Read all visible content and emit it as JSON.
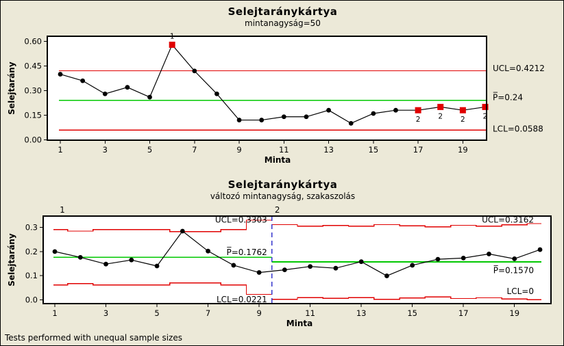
{
  "colors": {
    "window_bg": "#ECE9D8",
    "plot_bg": "#FFFFFF",
    "control_limit": "#E00000",
    "center_line": "#00C800",
    "data_line": "#000000",
    "flag_marker": "#E00000",
    "stage_separator": "#3333CC",
    "frame": "#000000"
  },
  "footer": {
    "text": "Tests performed with unequal sample sizes"
  },
  "chart_data": [
    {
      "type": "line",
      "chart_kind": "p-control-chart",
      "title": "Selejtaránykártya",
      "subtitle": "mintanagyság=50",
      "xlabel": "Minta",
      "ylabel": "Selejtarány",
      "x": [
        1,
        2,
        3,
        4,
        5,
        6,
        7,
        8,
        9,
        10,
        11,
        12,
        13,
        14,
        15,
        16,
        17,
        18,
        19,
        20
      ],
      "values": [
        0.4,
        0.36,
        0.28,
        0.32,
        0.26,
        0.58,
        0.42,
        0.28,
        0.12,
        0.12,
        0.14,
        0.14,
        0.18,
        0.1,
        0.16,
        0.18,
        0.18,
        0.2,
        0.18,
        0.2
      ],
      "ucl": 0.4212,
      "center": 0.24,
      "lcl": 0.0588,
      "labels": {
        "ucl": "UCL=0.4212",
        "center": "P̅=0.24",
        "lcl": "LCL=0.0588"
      },
      "flagged_points": [
        {
          "sample": 6,
          "label": "1",
          "label_position": "above"
        },
        {
          "sample": 17,
          "label": "2",
          "label_position": "below"
        },
        {
          "sample": 18,
          "label": "2",
          "label_position": "below"
        },
        {
          "sample": 19,
          "label": "2",
          "label_position": "below"
        },
        {
          "sample": 20,
          "label": "2",
          "label_position": "below"
        }
      ],
      "ytick_values": [
        0.0,
        0.15,
        0.3,
        0.45,
        0.6
      ],
      "ytick_labels": [
        "0.00",
        "0.15",
        "0.30",
        "0.45",
        "0.60"
      ],
      "xticks": [
        1,
        3,
        5,
        7,
        9,
        11,
        13,
        15,
        17,
        19
      ],
      "ylim": [
        -0.003,
        0.632
      ],
      "grid": false,
      "legend": null
    },
    {
      "type": "line",
      "chart_kind": "p-control-chart-staged",
      "title": "Selejtaránykártya",
      "subtitle": "változó mintanagyság, szakaszolás",
      "xlabel": "Minta",
      "ylabel": "Selejtarány",
      "x": [
        1,
        2,
        3,
        4,
        5,
        6,
        7,
        8,
        9,
        10,
        11,
        12,
        13,
        14,
        15,
        16,
        17,
        18,
        19,
        20
      ],
      "values": [
        0.2,
        0.176,
        0.148,
        0.165,
        0.14,
        0.285,
        0.202,
        0.143,
        0.113,
        0.124,
        0.138,
        0.131,
        0.158,
        0.099,
        0.143,
        0.168,
        0.173,
        0.19,
        0.17,
        0.208
      ],
      "separator_after_sample": 9,
      "stages": [
        {
          "label": "1",
          "samples": [
            1,
            9
          ],
          "center": 0.1762,
          "ucl_final": 0.3303,
          "lcl_final": 0.0221,
          "labels": {
            "ucl": "UCL=0.3303",
            "center": "P̅=0.1762",
            "lcl": "LCL=0.0221"
          },
          "ucl_steps": [
            0.291,
            0.285,
            0.291,
            0.291,
            0.291,
            0.283,
            0.283,
            0.291,
            0.3303
          ],
          "lcl_steps": [
            0.0614,
            0.0674,
            0.0614,
            0.0614,
            0.0614,
            0.0694,
            0.0694,
            0.0614,
            0.0221
          ]
        },
        {
          "label": "2",
          "samples": [
            10,
            20
          ],
          "center": 0.157,
          "ucl_final": 0.3162,
          "lcl_final": 0,
          "labels": {
            "ucl": "UCL=0.3162",
            "center": "P̅=0.1570",
            "lcl": "LCL=0"
          },
          "ucl_steps": [
            0.312,
            0.305,
            0.308,
            0.305,
            0.312,
            0.307,
            0.303,
            0.309,
            0.306,
            0.311,
            0.3162
          ],
          "lcl_steps": [
            0.002,
            0.009,
            0.006,
            0.009,
            0.002,
            0.007,
            0.011,
            0.005,
            0.008,
            0.003,
            0.0
          ]
        }
      ],
      "ytick_values": [
        0.0,
        0.1,
        0.2,
        0.3
      ],
      "ytick_labels": [
        "0.0",
        "0.1",
        "0.2",
        "0.3"
      ],
      "xticks": [
        1,
        3,
        5,
        7,
        9,
        11,
        13,
        15,
        17,
        19
      ],
      "ylim": [
        -0.0162,
        0.3474
      ],
      "grid": false,
      "legend": null
    }
  ]
}
